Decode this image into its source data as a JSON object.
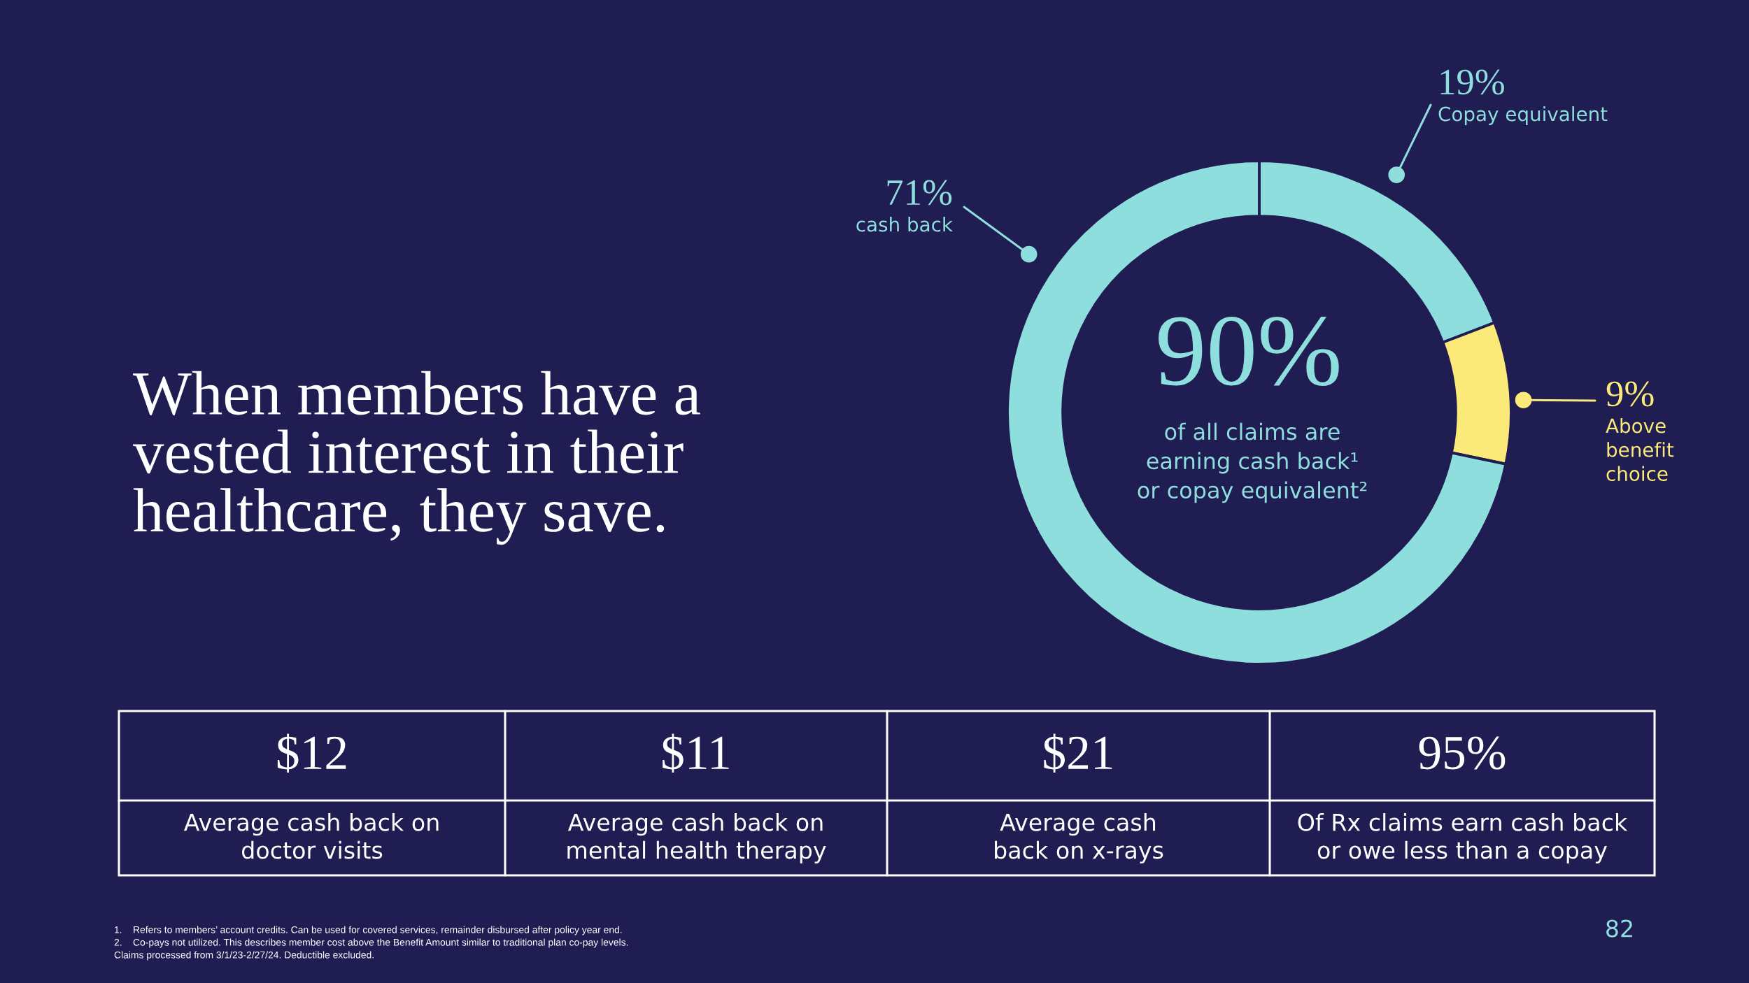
{
  "chart_data": {
    "type": "donut",
    "title": "When members have a\nvested interest in their\nhealthcare, they save.",
    "categories": [
      "Copay equivalent",
      "Above benefit choice",
      "cash back"
    ],
    "values": [
      19,
      9,
      71
    ],
    "value_labels": [
      "19%",
      "9%",
      "71%"
    ],
    "colors": [
      "#8fdede",
      "#fbe97a",
      "#8fdede"
    ],
    "annotations": [
      "90%",
      "of all claims are\nearning cash back¹\nor copay equivalent²",
      "$12",
      "Average cash back on\ndoctor visits",
      "$11",
      "Average cash back on\nmental health therapy",
      "$21",
      "Average cash\nback on x-rays",
      "95%",
      "Of Rx claims earn cash back\nor owe less than a copay",
      "1.    Refers to members’ account credits. Can be used for covered services, remainder disbursed after policy year end.",
      "2.    Co-pays not utilized. This describes member cost above the Benefit Amount similar to traditional plan co-pay levels.",
      "Claims processed from 3/1/23-2/27/24. Deductible excluded.",
      "82"
    ]
  }
}
